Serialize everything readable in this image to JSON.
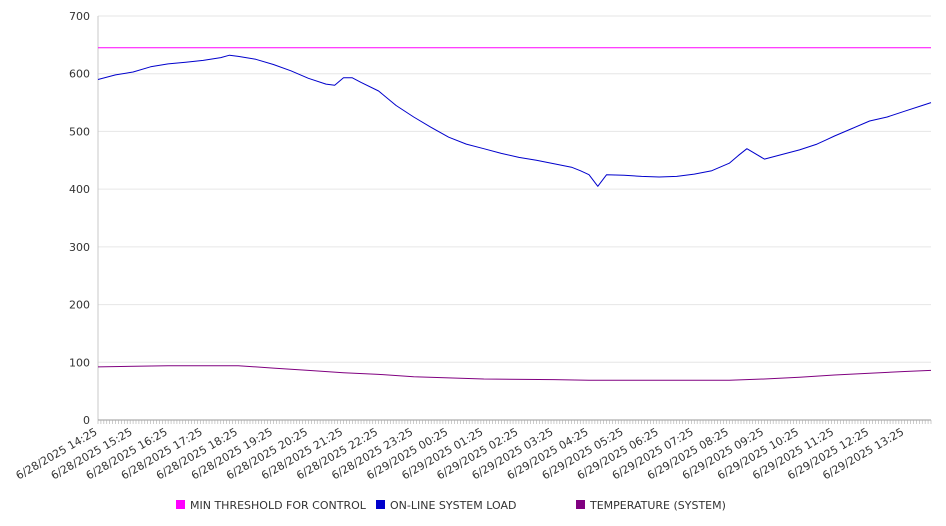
{
  "chart_data": {
    "type": "line",
    "title": "",
    "xlabel": "",
    "ylabel": "",
    "ylim": [
      0,
      700
    ],
    "y_ticks": [
      0,
      100,
      200,
      300,
      400,
      500,
      600,
      700
    ],
    "grid": "horizontal",
    "legend_position": "bottom",
    "x_tick_labels": [
      "6/28/2025 14:25",
      "6/28/2025 15:25",
      "6/28/2025 16:25",
      "6/28/2025 17:25",
      "6/28/2025 18:25",
      "6/28/2025 19:25",
      "6/28/2025 20:25",
      "6/28/2025 21:25",
      "6/28/2025 22:25",
      "6/28/2025 23:25",
      "6/29/2025 00:25",
      "6/29/2025 01:25",
      "6/29/2025 02:25",
      "6/29/2025 03:25",
      "6/29/2025 04:25",
      "6/29/2025 05:25",
      "6/29/2025 06:25",
      "6/29/2025 07:25",
      "6/29/2025 08:25",
      "6/29/2025 09:25",
      "6/29/2025 10:25",
      "6/29/2025 11:25",
      "6/29/2025 12:25",
      "6/29/2025 13:25"
    ],
    "x_end": "6/29/2025 14:10",
    "series": [
      {
        "name": "MIN THRESHOLD FOR CONTROL",
        "color": "#ff00ff",
        "x": [
          "6/28/2025 14:25",
          "6/29/2025 14:10"
        ],
        "values": [
          645,
          645
        ]
      },
      {
        "name": "ON-LINE SYSTEM LOAD",
        "color": "#0000cc",
        "x": [
          "6/28/2025 14:25",
          "6/28/2025 14:55",
          "6/28/2025 15:25",
          "6/28/2025 15:55",
          "6/28/2025 16:25",
          "6/28/2025 16:55",
          "6/28/2025 17:25",
          "6/28/2025 17:55",
          "6/28/2025 18:10",
          "6/28/2025 18:25",
          "6/28/2025 18:55",
          "6/28/2025 19:25",
          "6/28/2025 19:55",
          "6/28/2025 20:25",
          "6/28/2025 20:55",
          "6/28/2025 21:10",
          "6/28/2025 21:25",
          "6/28/2025 21:40",
          "6/28/2025 21:55",
          "6/28/2025 22:25",
          "6/28/2025 22:55",
          "6/28/2025 23:25",
          "6/28/2025 23:55",
          "6/29/2025 00:25",
          "6/29/2025 00:55",
          "6/29/2025 01:25",
          "6/29/2025 01:55",
          "6/29/2025 02:25",
          "6/29/2025 02:55",
          "6/29/2025 03:25",
          "6/29/2025 03:55",
          "6/29/2025 04:10",
          "6/29/2025 04:25",
          "6/29/2025 04:40",
          "6/29/2025 04:55",
          "6/29/2025 05:25",
          "6/29/2025 05:55",
          "6/29/2025 06:25",
          "6/29/2025 06:55",
          "6/29/2025 07:25",
          "6/29/2025 07:55",
          "6/29/2025 08:25",
          "6/29/2025 08:40",
          "6/29/2025 08:55",
          "6/29/2025 09:25",
          "6/29/2025 09:55",
          "6/29/2025 10:25",
          "6/29/2025 10:55",
          "6/29/2025 11:10",
          "6/29/2025 11:25",
          "6/29/2025 11:55",
          "6/29/2025 12:25",
          "6/29/2025 12:55",
          "6/29/2025 13:25",
          "6/29/2025 13:55",
          "6/29/2025 14:10"
        ],
        "values": [
          590,
          598,
          603,
          612,
          617,
          620,
          623,
          628,
          632,
          630,
          625,
          616,
          605,
          592,
          582,
          580,
          593,
          593,
          585,
          570,
          545,
          525,
          507,
          490,
          478,
          470,
          462,
          455,
          450,
          444,
          438,
          432,
          425,
          405,
          425,
          424,
          422,
          421,
          422,
          426,
          432,
          445,
          458,
          470,
          452,
          460,
          468,
          478,
          485,
          492,
          505,
          518,
          525,
          535,
          545,
          550
        ]
      },
      {
        "name": "TEMPERATURE (SYSTEM)",
        "color": "#800080",
        "x": [
          "6/28/2025 14:25",
          "6/28/2025 16:25",
          "6/28/2025 18:25",
          "6/28/2025 19:25",
          "6/28/2025 20:25",
          "6/28/2025 21:25",
          "6/28/2025 22:25",
          "6/28/2025 23:25",
          "6/29/2025 00:25",
          "6/29/2025 01:25",
          "6/29/2025 03:25",
          "6/29/2025 04:25",
          "6/29/2025 06:25",
          "6/29/2025 08:25",
          "6/29/2025 09:25",
          "6/29/2025 10:25",
          "6/29/2025 11:25",
          "6/29/2025 12:25",
          "6/29/2025 13:25",
          "6/29/2025 14:10"
        ],
        "values": [
          92,
          94,
          94,
          90,
          86,
          82,
          79,
          75,
          73,
          71,
          70,
          69,
          69,
          69,
          71,
          74,
          78,
          81,
          84,
          86
        ]
      }
    ]
  }
}
